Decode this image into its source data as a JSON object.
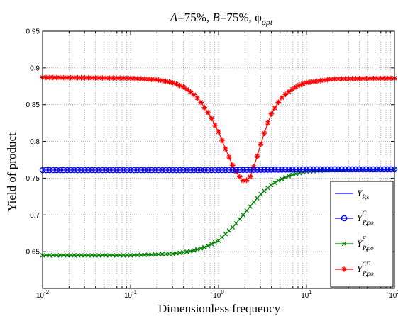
{
  "chart_data": {
    "type": "line",
    "title": {
      "part1": "A",
      "part2": "=75%, ",
      "part3": "B",
      "part4": "=75%, ",
      "part5": "φ",
      "part6": "opt"
    },
    "xlabel": "Dimensionless frequency",
    "ylabel": "Yield of product",
    "xscale": "log",
    "xlim": [
      0.01,
      100
    ],
    "ylim": [
      0.6,
      0.95
    ],
    "grid": true,
    "legend_position": "bottom-right",
    "x_ticks": [
      {
        "base": "10",
        "exp": "-2"
      },
      {
        "base": "10",
        "exp": "-1"
      },
      {
        "base": "10",
        "exp": "0"
      },
      {
        "base": "10",
        "exp": "1"
      },
      {
        "base": "10",
        "exp": "2"
      }
    ],
    "y_ticks": [
      "0.65",
      "0.7",
      "0.75",
      "0.8",
      "0.85",
      "0.9",
      "0.95"
    ],
    "y_tick_values": [
      0.65,
      0.7,
      0.75,
      0.8,
      0.85,
      0.9,
      0.95
    ],
    "x_tick_values": [
      0.01,
      0.1,
      1,
      10,
      100
    ],
    "series": [
      {
        "name": {
          "main": "Y",
          "sub": "P,s",
          "sup": ""
        },
        "color": "#0000ff",
        "marker": "none",
        "x": [
          0.01,
          0.1,
          1,
          10,
          100
        ],
        "y": [
          0.761,
          0.761,
          0.761,
          0.761,
          0.761
        ]
      },
      {
        "name": {
          "main": "Y",
          "sub": "P,po",
          "sup": "C"
        },
        "color": "#0000ff",
        "marker": "circle",
        "x": [
          0.01,
          0.1,
          1,
          10,
          100
        ],
        "y": [
          0.761,
          0.761,
          0.761,
          0.762,
          0.762
        ]
      },
      {
        "name": {
          "main": "Y",
          "sub": "P,po",
          "sup": "F"
        },
        "color": "#008000",
        "marker": "x",
        "x": [
          0.01,
          0.1,
          0.3,
          0.5,
          0.7,
          1.0,
          1.5,
          2.0,
          3.0,
          4.0,
          5.0,
          7.0,
          10,
          20,
          100
        ],
        "y": [
          0.645,
          0.645,
          0.647,
          0.651,
          0.656,
          0.665,
          0.685,
          0.703,
          0.728,
          0.741,
          0.748,
          0.755,
          0.759,
          0.761,
          0.762
        ]
      },
      {
        "name": {
          "main": "Y",
          "sub": "P,po",
          "sup": "CF"
        },
        "color": "#ff0000",
        "marker": "star",
        "x": [
          0.01,
          0.1,
          0.2,
          0.3,
          0.4,
          0.5,
          0.6,
          0.8,
          1.0,
          1.2,
          1.5,
          1.8,
          2.0,
          2.3,
          2.6,
          3.0,
          3.5,
          4.0,
          5.0,
          6.0,
          8.0,
          10,
          20,
          100
        ],
        "y": [
          0.887,
          0.886,
          0.884,
          0.88,
          0.874,
          0.866,
          0.857,
          0.835,
          0.813,
          0.79,
          0.763,
          0.749,
          0.745,
          0.752,
          0.77,
          0.795,
          0.82,
          0.838,
          0.857,
          0.866,
          0.876,
          0.88,
          0.885,
          0.886
        ]
      }
    ]
  }
}
